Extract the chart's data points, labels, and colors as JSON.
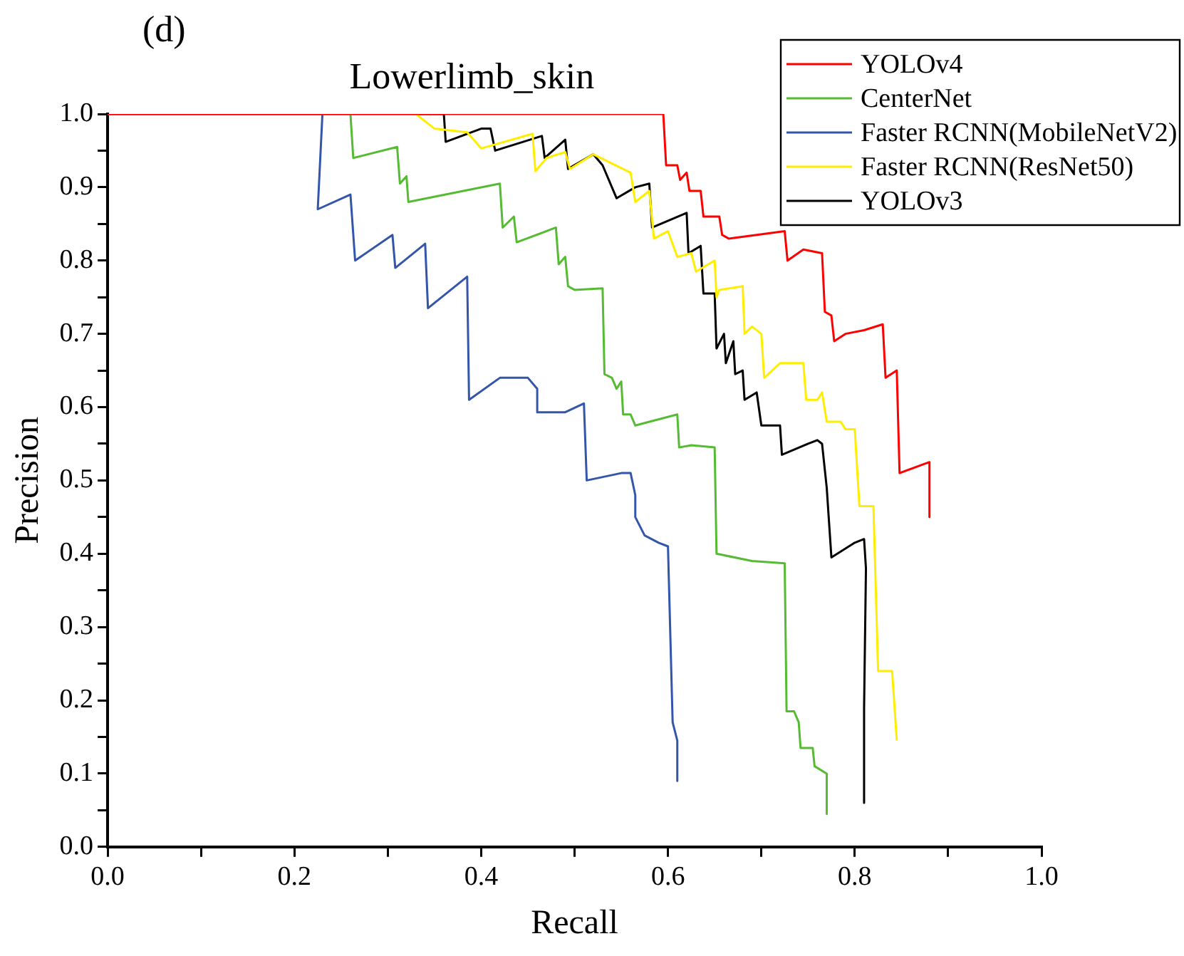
{
  "chart_data": {
    "type": "line",
    "title": "Lowerlimb_skin",
    "xlabel": "Recall",
    "ylabel": "Precision",
    "annotations": [
      "(d)"
    ],
    "xlim": [
      0,
      1
    ],
    "ylim": [
      0,
      1
    ],
    "xticks": [
      {
        "value": 0,
        "label": "0.0"
      },
      {
        "value": 0.1,
        "label": null
      },
      {
        "value": 0.2,
        "label": "0.2"
      },
      {
        "value": 0.3,
        "label": null
      },
      {
        "value": 0.4,
        "label": "0.4"
      },
      {
        "value": 0.5,
        "label": null
      },
      {
        "value": 0.6,
        "label": "0.6"
      },
      {
        "value": 0.7,
        "label": null
      },
      {
        "value": 0.8,
        "label": "0.8"
      },
      {
        "value": 0.9,
        "label": null
      },
      {
        "value": 1,
        "label": "1.0"
      }
    ],
    "yticks": [
      {
        "value": 0,
        "label": "0.0"
      },
      {
        "value": 0.05,
        "label": null
      },
      {
        "value": 0.1,
        "label": "0.1"
      },
      {
        "value": 0.15,
        "label": null
      },
      {
        "value": 0.2,
        "label": "0.2"
      },
      {
        "value": 0.25,
        "label": null
      },
      {
        "value": 0.3,
        "label": "0.3"
      },
      {
        "value": 0.35,
        "label": null
      },
      {
        "value": 0.4,
        "label": "0.4"
      },
      {
        "value": 0.45,
        "label": null
      },
      {
        "value": 0.5,
        "label": "0.5"
      },
      {
        "value": 0.55,
        "label": null
      },
      {
        "value": 0.6,
        "label": "0.6"
      },
      {
        "value": 0.65,
        "label": null
      },
      {
        "value": 0.7,
        "label": "0.7"
      },
      {
        "value": 0.75,
        "label": null
      },
      {
        "value": 0.8,
        "label": "0.8"
      },
      {
        "value": 0.85,
        "label": null
      },
      {
        "value": 0.9,
        "label": "0.9"
      },
      {
        "value": 0.95,
        "label": null
      },
      {
        "value": 1,
        "label": "1.0"
      }
    ],
    "grid": false,
    "legend": "top right",
    "marker": "none",
    "line_style": "solid",
    "series": [
      {
        "name": "YOLOv4",
        "color": "#ff0000",
        "x": [
          0,
          0.595,
          0.598,
          0.61,
          0.613,
          0.62,
          0.623,
          0.635,
          0.638,
          0.655,
          0.658,
          0.665,
          0.725,
          0.728,
          0.745,
          0.765,
          0.768,
          0.775,
          0.778,
          0.79,
          0.81,
          0.83,
          0.833,
          0.845,
          0.848,
          0.88,
          0.88
        ],
        "values": [
          1,
          1,
          0.93,
          0.93,
          0.91,
          0.92,
          0.895,
          0.895,
          0.86,
          0.86,
          0.835,
          0.83,
          0.84,
          0.8,
          0.815,
          0.81,
          0.73,
          0.725,
          0.69,
          0.7,
          0.705,
          0.713,
          0.64,
          0.65,
          0.51,
          0.525,
          0.45
        ]
      },
      {
        "name": "CenterNet",
        "color": "#55bb33",
        "x": [
          0,
          0.26,
          0.263,
          0.31,
          0.313,
          0.32,
          0.322,
          0.42,
          0.423,
          0.435,
          0.438,
          0.48,
          0.483,
          0.49,
          0.493,
          0.5,
          0.53,
          0.532,
          0.54,
          0.545,
          0.55,
          0.552,
          0.56,
          0.565,
          0.61,
          0.612,
          0.625,
          0.65,
          0.652,
          0.69,
          0.725,
          0.727,
          0.735,
          0.74,
          0.742,
          0.755,
          0.757,
          0.77,
          0.77
        ],
        "values": [
          1,
          1,
          0.94,
          0.955,
          0.905,
          0.915,
          0.88,
          0.905,
          0.845,
          0.86,
          0.825,
          0.845,
          0.795,
          0.805,
          0.765,
          0.76,
          0.762,
          0.645,
          0.64,
          0.625,
          0.635,
          0.59,
          0.59,
          0.575,
          0.59,
          0.545,
          0.548,
          0.545,
          0.4,
          0.39,
          0.387,
          0.185,
          0.185,
          0.17,
          0.135,
          0.135,
          0.11,
          0.1,
          0.045
        ]
      },
      {
        "name": "Faster RCNN(MobileNetV2)",
        "color": "#3355aa",
        "x": [
          0,
          0.23,
          0.225,
          0.26,
          0.265,
          0.305,
          0.308,
          0.34,
          0.343,
          0.385,
          0.387,
          0.42,
          0.45,
          0.46,
          0.46,
          0.49,
          0.51,
          0.513,
          0.55,
          0.56,
          0.565,
          0.565,
          0.575,
          0.59,
          0.6,
          0.605,
          0.61,
          0.61
        ],
        "values": [
          1,
          1,
          0.87,
          0.89,
          0.8,
          0.835,
          0.79,
          0.823,
          0.735,
          0.778,
          0.61,
          0.64,
          0.64,
          0.625,
          0.593,
          0.593,
          0.605,
          0.5,
          0.51,
          0.51,
          0.48,
          0.45,
          0.425,
          0.415,
          0.41,
          0.17,
          0.145,
          0.09
        ]
      },
      {
        "name": "Faster RCNN(ResNet50)",
        "color": "#ffee00",
        "x": [
          0,
          0.33,
          0.35,
          0.385,
          0.4,
          0.455,
          0.458,
          0.47,
          0.49,
          0.495,
          0.52,
          0.56,
          0.565,
          0.58,
          0.585,
          0.6,
          0.61,
          0.625,
          0.63,
          0.65,
          0.652,
          0.655,
          0.68,
          0.682,
          0.69,
          0.7,
          0.703,
          0.72,
          0.745,
          0.748,
          0.76,
          0.765,
          0.77,
          0.785,
          0.79,
          0.8,
          0.805,
          0.82,
          0.825,
          0.84,
          0.845
        ],
        "values": [
          1,
          1,
          0.98,
          0.975,
          0.953,
          0.973,
          0.922,
          0.94,
          0.948,
          0.925,
          0.945,
          0.92,
          0.88,
          0.895,
          0.83,
          0.84,
          0.805,
          0.81,
          0.785,
          0.8,
          0.75,
          0.76,
          0.765,
          0.7,
          0.71,
          0.7,
          0.64,
          0.66,
          0.66,
          0.61,
          0.61,
          0.62,
          0.58,
          0.58,
          0.57,
          0.57,
          0.465,
          0.465,
          0.24,
          0.24,
          0.145
        ]
      },
      {
        "name": "YOLOv3",
        "color": "#000000",
        "x": [
          0,
          0.36,
          0.362,
          0.4,
          0.41,
          0.415,
          0.465,
          0.468,
          0.49,
          0.493,
          0.52,
          0.53,
          0.545,
          0.565,
          0.58,
          0.583,
          0.62,
          0.622,
          0.635,
          0.638,
          0.65,
          0.652,
          0.66,
          0.662,
          0.67,
          0.672,
          0.68,
          0.682,
          0.695,
          0.7,
          0.72,
          0.722,
          0.75,
          0.76,
          0.765,
          0.77,
          0.775,
          0.8,
          0.81,
          0.812,
          0.81,
          0.81
        ],
        "values": [
          1,
          1,
          0.962,
          0.98,
          0.98,
          0.95,
          0.97,
          0.94,
          0.965,
          0.925,
          0.945,
          0.93,
          0.885,
          0.9,
          0.905,
          0.845,
          0.865,
          0.81,
          0.82,
          0.755,
          0.755,
          0.68,
          0.7,
          0.66,
          0.69,
          0.645,
          0.65,
          0.61,
          0.62,
          0.575,
          0.575,
          0.535,
          0.55,
          0.555,
          0.55,
          0.49,
          0.395,
          0.415,
          0.42,
          0.38,
          0.19,
          0.06
        ]
      }
    ]
  }
}
